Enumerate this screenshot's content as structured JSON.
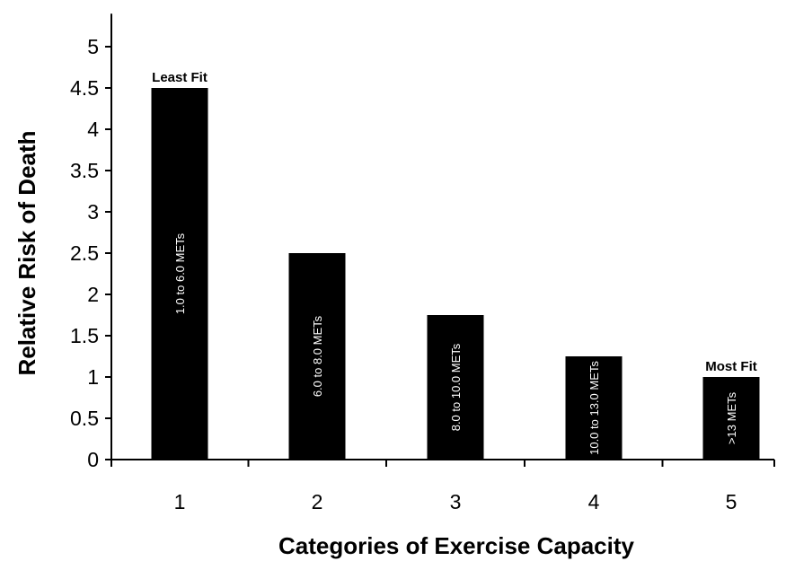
{
  "chart_data": {
    "type": "bar",
    "title": "",
    "xlabel": "Categories of Exercise Capacity",
    "ylabel": "Relative Risk of Death",
    "categories": [
      "1",
      "2",
      "3",
      "4",
      "5"
    ],
    "values": [
      4.5,
      2.5,
      1.75,
      1.25,
      1.0
    ],
    "bar_labels": [
      "1.0 to 6.0 METs",
      "6.0 to 8.0 METs",
      "8.0 to 10.0 METs",
      "10.0 to 13.0 METs",
      ">13 METs"
    ],
    "annotations": [
      {
        "category": "1",
        "text": "Least Fit"
      },
      {
        "category": "5",
        "text": "Most Fit"
      }
    ],
    "y_ticks": [
      "0",
      "0.5",
      "1",
      "1.5",
      "2",
      "2.5",
      "3",
      "3.5",
      "4",
      "4.5",
      "5"
    ],
    "ylim": [
      0,
      5.4
    ],
    "grid": false,
    "bar_color": "#000000"
  }
}
